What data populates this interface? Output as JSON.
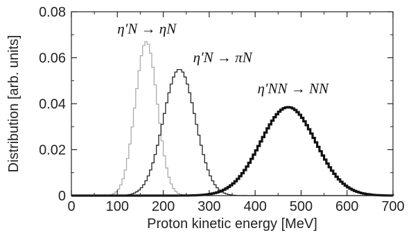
{
  "chart_data": {
    "type": "line",
    "xlabel": "Proton kinetic energy [MeV]",
    "ylabel": "Distribution [arb. units]",
    "xlim": [
      0,
      700
    ],
    "ylim": [
      0,
      0.08
    ],
    "x_ticks": [
      0,
      100,
      200,
      300,
      400,
      500,
      600,
      700
    ],
    "x_tick_labels": [
      "0",
      "100",
      "200",
      "300",
      "400",
      "500",
      "600",
      "700"
    ],
    "y_ticks": [
      0,
      0.02,
      0.04,
      0.06,
      0.08
    ],
    "y_tick_labels": [
      "0",
      "0.02",
      "0.04",
      "0.06",
      "0.08"
    ],
    "grid": false,
    "histogram_bin_width": 5,
    "series": [
      {
        "center": 163,
        "sigma": 24,
        "peak": 0.067,
        "color": "#aaaaaa",
        "stroke": 1.3
      },
      {
        "center": 235,
        "sigma": 35,
        "peak": 0.055,
        "color": "#222222",
        "stroke": 1.3
      },
      {
        "center": 472,
        "sigma": 60,
        "peak": 0.0385,
        "color": "#111111",
        "stroke": 3.2
      }
    ],
    "annotations": [
      {
        "text": "η′N → ηN",
        "x": 100,
        "y": 0.0705
      },
      {
        "text": "η′N → πN",
        "x": 265,
        "y": 0.058
      },
      {
        "text": "η′NN → NN",
        "x": 405,
        "y": 0.0445
      }
    ]
  }
}
